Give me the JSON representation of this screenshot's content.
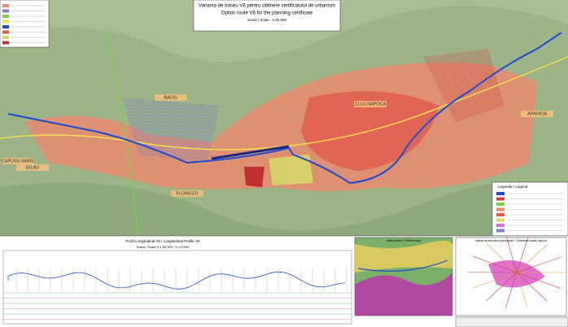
{
  "header": {
    "title": "Varianta de traseu V8 pentru obtinere certificatului de urbanism",
    "subtitle": "Option route V8 for the planning certificate",
    "scale": "Scara / Scale : 1:25 000"
  },
  "map": {
    "place_labels": [
      "CAPUSU MARE",
      "GILAU",
      "FLORESTI",
      "BACIU",
      "CLUJ-NAPOCA",
      "APAHIDA"
    ]
  },
  "legend": {
    "title": "Legenda / Legend"
  },
  "profile": {
    "title": "Profil Longitudinal V8 / Longitudinal Profile V8",
    "scale": "Scara / Scale H 1:50 000 / V 1:5 000"
  },
  "insets": {
    "relief": "Harta relief / Relief map",
    "roads": "Harta drumurilor principale / General roads layout"
  }
}
